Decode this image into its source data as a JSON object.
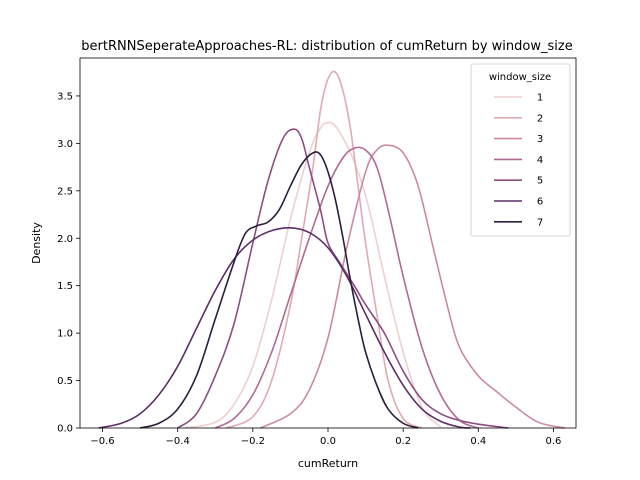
{
  "chart_data": {
    "type": "line",
    "title": "bertRNNSeperateApproaches-RL: distribution of cumReturn by window_size",
    "xlabel": "cumReturn",
    "ylabel": "Density",
    "xlim": [
      -0.66,
      0.66
    ],
    "ylim": [
      0,
      3.9
    ],
    "xticks": [
      -0.6,
      -0.4,
      -0.2,
      0.0,
      0.2,
      0.4,
      0.6
    ],
    "xtick_labels": [
      "−0.6",
      "−0.4",
      "−0.2",
      "0.0",
      "0.2",
      "0.4",
      "0.6"
    ],
    "yticks": [
      0.0,
      0.5,
      1.0,
      1.5,
      2.0,
      2.5,
      3.0,
      3.5
    ],
    "ytick_labels": [
      "0.0",
      "0.5",
      "1.0",
      "1.5",
      "2.0",
      "2.5",
      "3.0",
      "3.5"
    ],
    "grid": false,
    "legend": {
      "title": "window_size",
      "placement": "top-right"
    },
    "series": [
      {
        "name": "1",
        "color": "#efcfcf",
        "x": [
          -0.38,
          -0.3,
          -0.25,
          -0.2,
          -0.15,
          -0.1,
          -0.05,
          -0.02,
          0.0,
          0.02,
          0.05,
          0.08,
          0.11,
          0.15,
          0.2,
          0.25,
          0.3
        ],
        "y": [
          0.0,
          0.06,
          0.25,
          0.65,
          1.35,
          2.2,
          2.9,
          3.16,
          3.22,
          3.18,
          2.98,
          2.7,
          2.3,
          1.6,
          0.8,
          0.22,
          0.01
        ]
      },
      {
        "name": "2",
        "color": "#e0aab2",
        "x": [
          -0.27,
          -0.2,
          -0.15,
          -0.1,
          -0.07,
          -0.04,
          -0.02,
          0.0,
          0.02,
          0.04,
          0.06,
          0.08,
          0.1,
          0.13,
          0.16,
          0.2,
          0.25
        ],
        "y": [
          0.0,
          0.12,
          0.5,
          1.3,
          2.0,
          2.75,
          3.35,
          3.68,
          3.75,
          3.55,
          3.15,
          2.55,
          1.95,
          1.2,
          0.5,
          0.1,
          0.0
        ]
      },
      {
        "name": "3",
        "color": "#cc8aa2",
        "x": [
          -0.18,
          -0.1,
          -0.05,
          0.0,
          0.05,
          0.1,
          0.13,
          0.16,
          0.2,
          0.24,
          0.28,
          0.32,
          0.35,
          0.4,
          0.45,
          0.5,
          0.56,
          0.63
        ],
        "y": [
          0.0,
          0.15,
          0.4,
          0.95,
          1.9,
          2.7,
          2.93,
          2.98,
          2.9,
          2.55,
          1.9,
          1.25,
          0.85,
          0.55,
          0.38,
          0.22,
          0.06,
          0.0
        ]
      },
      {
        "name": "4",
        "color": "#b06a93",
        "x": [
          -0.3,
          -0.25,
          -0.2,
          -0.15,
          -0.1,
          -0.05,
          0.0,
          0.04,
          0.07,
          0.1,
          0.13,
          0.16,
          0.2,
          0.25,
          0.3,
          0.35,
          0.4
        ],
        "y": [
          0.0,
          0.1,
          0.35,
          0.8,
          1.4,
          2.0,
          2.55,
          2.85,
          2.95,
          2.93,
          2.75,
          2.3,
          1.6,
          0.85,
          0.35,
          0.08,
          0.0
        ]
      },
      {
        "name": "5",
        "color": "#8b4d83",
        "x": [
          -0.4,
          -0.35,
          -0.3,
          -0.25,
          -0.2,
          -0.16,
          -0.12,
          -0.09,
          -0.07,
          -0.05,
          -0.02,
          0.0,
          0.03,
          0.07,
          0.1,
          0.15,
          0.2,
          0.25,
          0.3,
          0.35,
          0.4,
          0.48
        ],
        "y": [
          0.0,
          0.15,
          0.55,
          1.1,
          1.95,
          2.6,
          3.05,
          3.15,
          3.05,
          2.75,
          2.3,
          1.95,
          1.75,
          1.5,
          1.3,
          1.0,
          0.6,
          0.3,
          0.15,
          0.08,
          0.04,
          0.0
        ]
      },
      {
        "name": "6",
        "color": "#5c2f66",
        "x": [
          -0.61,
          -0.55,
          -0.5,
          -0.45,
          -0.4,
          -0.35,
          -0.3,
          -0.25,
          -0.2,
          -0.15,
          -0.1,
          -0.05,
          0.0,
          0.05,
          0.1,
          0.15,
          0.2,
          0.25,
          0.3,
          0.35,
          0.38
        ],
        "y": [
          0.0,
          0.05,
          0.15,
          0.35,
          0.65,
          1.05,
          1.45,
          1.78,
          1.98,
          2.08,
          2.11,
          2.06,
          1.9,
          1.6,
          1.2,
          0.8,
          0.45,
          0.2,
          0.07,
          0.01,
          0.0
        ]
      },
      {
        "name": "7",
        "color": "#2d1e3e",
        "x": [
          -0.5,
          -0.45,
          -0.4,
          -0.35,
          -0.3,
          -0.25,
          -0.22,
          -0.19,
          -0.16,
          -0.13,
          -0.1,
          -0.07,
          -0.04,
          -0.02,
          0.0,
          0.02,
          0.04,
          0.06,
          0.08,
          0.1,
          0.13,
          0.16,
          0.2,
          0.24
        ],
        "y": [
          0.0,
          0.05,
          0.2,
          0.55,
          1.15,
          1.75,
          2.05,
          2.13,
          2.17,
          2.3,
          2.55,
          2.78,
          2.9,
          2.88,
          2.7,
          2.4,
          2.0,
          1.55,
          1.15,
          0.8,
          0.45,
          0.2,
          0.05,
          0.0
        ]
      }
    ]
  }
}
